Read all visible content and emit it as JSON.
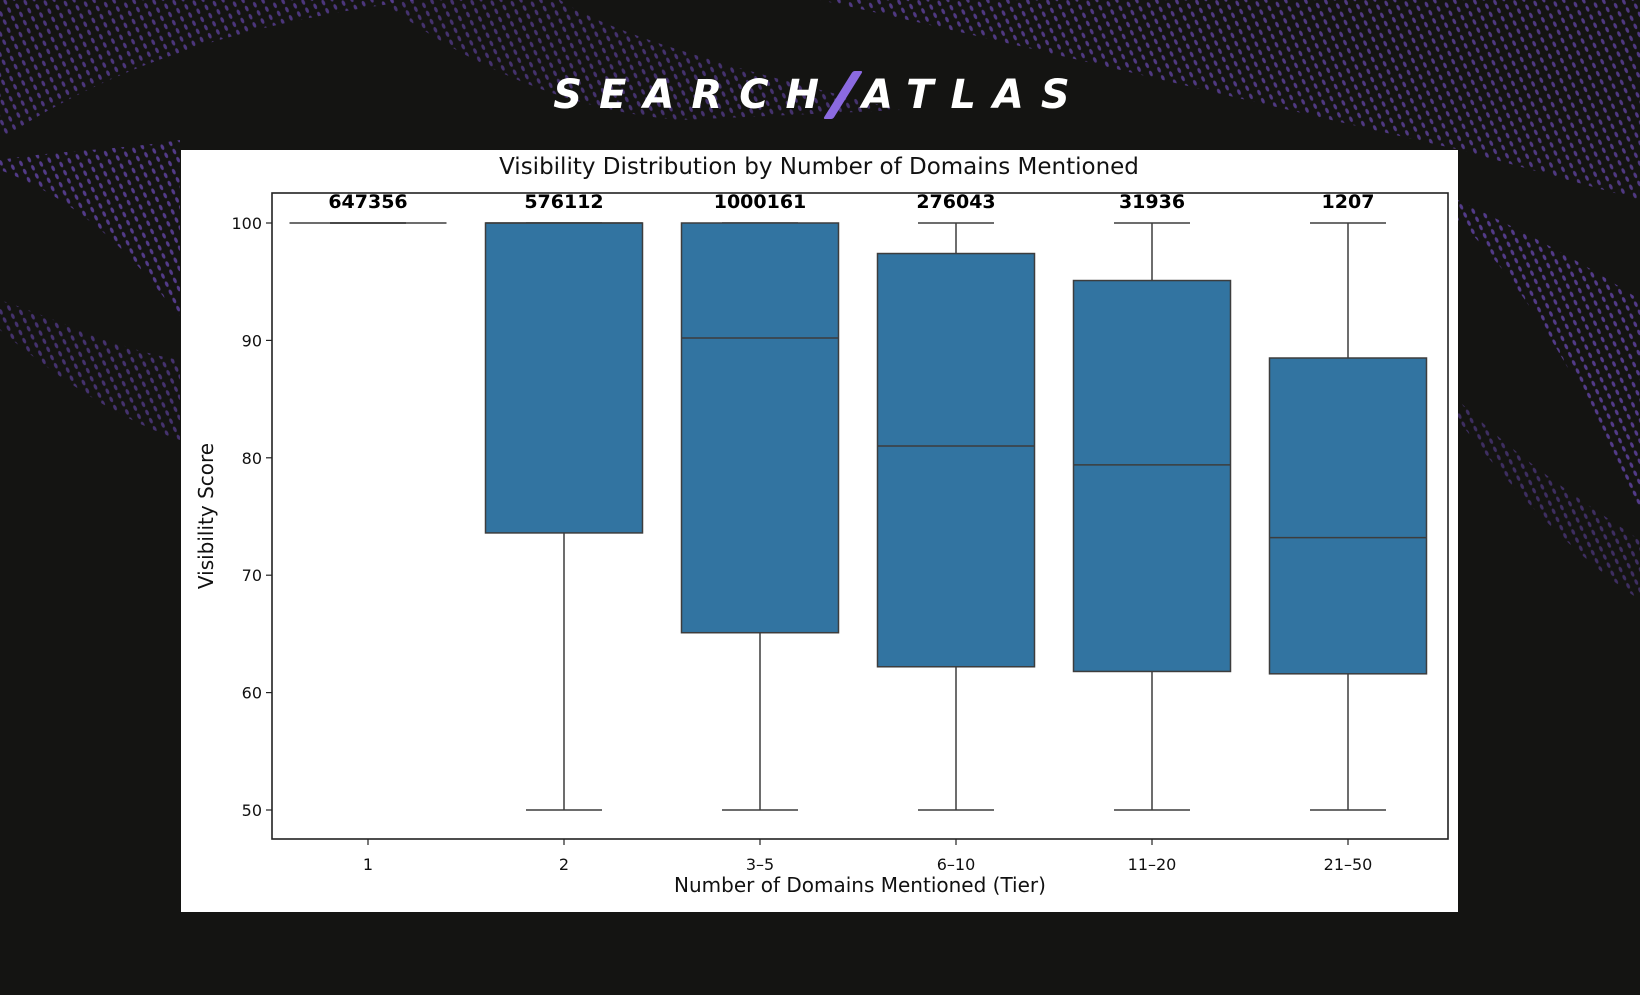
{
  "brand": {
    "logo_left": "SEARCH",
    "logo_right": "ATLAS",
    "accent_color": "#8b6ae0",
    "background_color": "#141412"
  },
  "chart_data": {
    "type": "boxplot",
    "title": "Visibility Distribution by Number of Domains Mentioned",
    "xlabel": "Number of Domains Mentioned (Tier)",
    "ylabel": "Visibility Score",
    "ylim": [
      47.5,
      102.5
    ],
    "yticks": [
      50,
      60,
      70,
      80,
      90,
      100
    ],
    "grid": false,
    "legend": null,
    "box_color": "#3274a1",
    "categories": [
      "1",
      "2",
      "3–5",
      "6–10",
      "11–20",
      "21–50"
    ],
    "counts": [
      647356,
      576112,
      1000161,
      276043,
      31936,
      1207
    ],
    "count_labels": [
      "647356",
      "576112",
      "1000161",
      "276043",
      "31936",
      "1207"
    ],
    "series": [
      {
        "tier": "1",
        "whisker_low": 100,
        "q1": 100.0,
        "median": 100.0,
        "q3": 100.0,
        "whisker_high": 100
      },
      {
        "tier": "2",
        "whisker_low": 50,
        "q1": 73.6,
        "median": 100.0,
        "q3": 100.0,
        "whisker_high": 100
      },
      {
        "tier": "3–5",
        "whisker_low": 50,
        "q1": 65.1,
        "median": 90.2,
        "q3": 100.0,
        "whisker_high": 100
      },
      {
        "tier": "6–10",
        "whisker_low": 50,
        "q1": 62.2,
        "median": 81.0,
        "q3": 97.4,
        "whisker_high": 100
      },
      {
        "tier": "11–20",
        "whisker_low": 50,
        "q1": 61.8,
        "median": 79.4,
        "q3": 95.1,
        "whisker_high": 100
      },
      {
        "tier": "21–50",
        "whisker_low": 50,
        "q1": 61.6,
        "median": 73.2,
        "q3": 88.5,
        "whisker_high": 100
      }
    ]
  }
}
